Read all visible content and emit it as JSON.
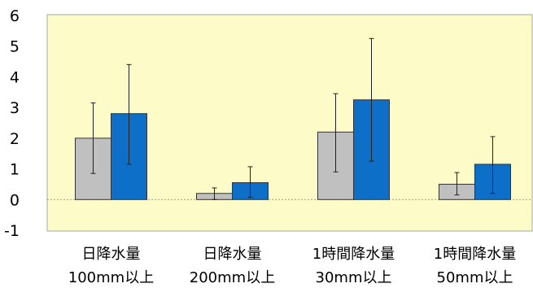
{
  "chart_data": {
    "type": "bar",
    "categories": [
      [
        "日降水量",
        "100mm以上"
      ],
      [
        "日降水量",
        "200mm以上"
      ],
      [
        "1時間降水量",
        "30mm以上"
      ],
      [
        "1時間降水量",
        "50mm以上"
      ]
    ],
    "series": [
      {
        "color": "#c0c0c0",
        "values": [
          2.0,
          0.2,
          2.2,
          0.5
        ],
        "error_low": [
          0.85,
          0.0,
          0.9,
          0.15
        ],
        "error_high": [
          3.15,
          0.38,
          3.45,
          0.88
        ]
      },
      {
        "color": "#0d6fc7",
        "values": [
          2.8,
          0.55,
          3.25,
          1.15
        ],
        "error_low": [
          1.15,
          0.07,
          1.25,
          0.2
        ],
        "error_high": [
          4.4,
          1.07,
          5.25,
          2.05
        ]
      }
    ],
    "yticks": [
      "-1",
      "0",
      "1",
      "2",
      "3",
      "4",
      "5",
      "6"
    ],
    "ylim": [
      -1,
      6
    ],
    "zero_line": "dotted",
    "plot_background": "#fdfcc8",
    "grid": false,
    "legend": "none"
  }
}
